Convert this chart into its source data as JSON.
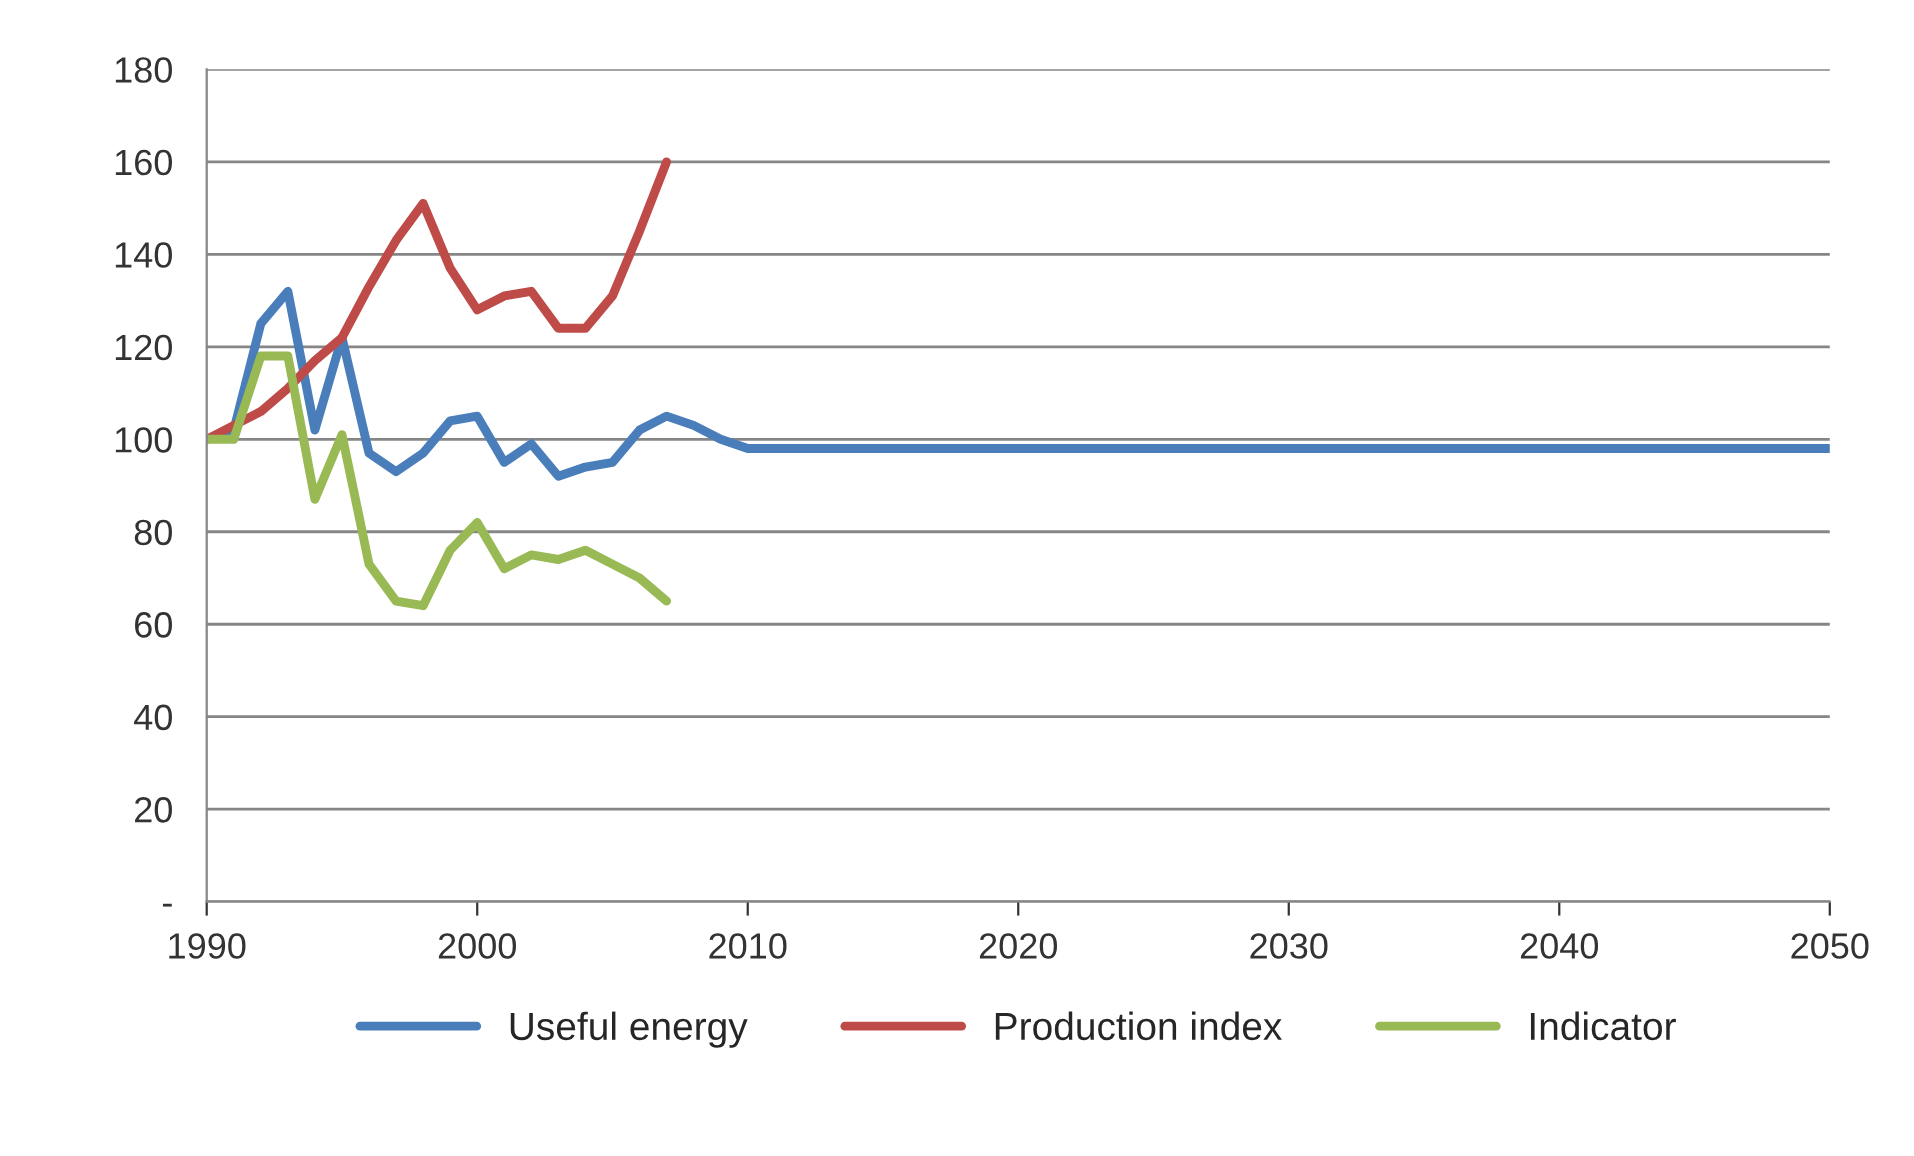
{
  "chart_data": {
    "type": "line",
    "xlim": [
      1990,
      2050
    ],
    "xticks": [
      1990,
      2000,
      2010,
      2020,
      2030,
      2040,
      2050
    ],
    "ylim": [
      0,
      180
    ],
    "yticks": [
      {
        "value": 0,
        "label": "-"
      },
      20,
      40,
      60,
      80,
      100,
      120,
      140,
      160,
      180
    ],
    "grid": "y",
    "legend": "bottom",
    "marker": "none",
    "line_style": "solid",
    "series": [
      {
        "name": "Useful energy",
        "color": "#4a7ebb",
        "x": [
          1990,
          1991,
          1992,
          1993,
          1994,
          1995,
          1996,
          1997,
          1998,
          1999,
          2000,
          2001,
          2002,
          2003,
          2004,
          2005,
          2006,
          2007,
          2008,
          2009,
          2010,
          2050
        ],
        "values": [
          100,
          102,
          125,
          132,
          102,
          122,
          97,
          93,
          97,
          104,
          105,
          95,
          99,
          92,
          94,
          95,
          102,
          105,
          103,
          100,
          98,
          98
        ]
      },
      {
        "name": "Production index",
        "color": "#be4b48",
        "x": [
          1990,
          1991,
          1992,
          1993,
          1994,
          1995,
          1996,
          1997,
          1998,
          1999,
          2000,
          2001,
          2002,
          2003,
          2004,
          2005,
          2006,
          2007
        ],
        "values": [
          100,
          103,
          106,
          111,
          117,
          122,
          133,
          143,
          151,
          137,
          128,
          131,
          132,
          124,
          124,
          131,
          145,
          160
        ]
      },
      {
        "name": "Indicator",
        "color": "#98b954",
        "x": [
          1990,
          1991,
          1992,
          1993,
          1994,
          1995,
          1996,
          1997,
          1998,
          1999,
          2000,
          2001,
          2002,
          2003,
          2004,
          2005,
          2006,
          2007
        ],
        "values": [
          100,
          100,
          118,
          118,
          87,
          101,
          73,
          65,
          64,
          76,
          82,
          72,
          75,
          74,
          76,
          73,
          70,
          65
        ]
      }
    ]
  }
}
